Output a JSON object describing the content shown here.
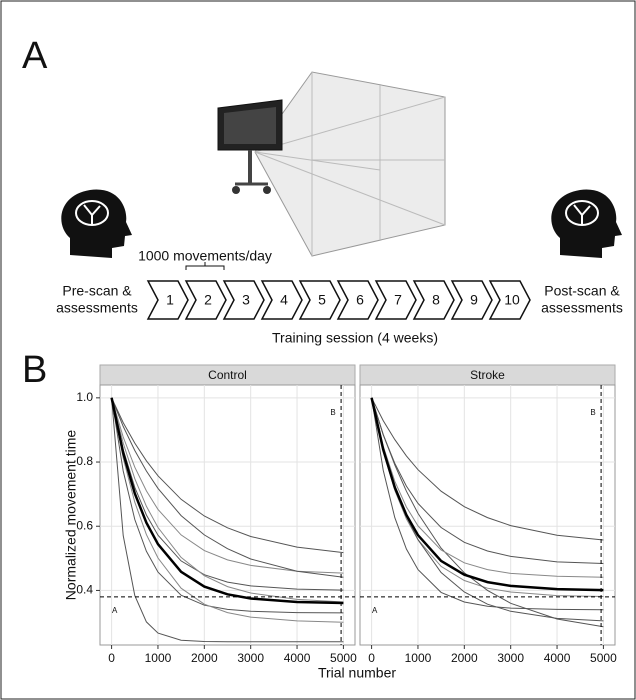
{
  "panel_a": {
    "label": "A",
    "top_note": "1000 movements/day",
    "pre": [
      "Pre-scan &",
      "assessments"
    ],
    "post": [
      "Post-scan &",
      "assessments"
    ],
    "steps": [
      "1",
      "2",
      "3",
      "4",
      "5",
      "6",
      "7",
      "8",
      "9",
      "10"
    ],
    "session": "Training session (4 weeks)"
  },
  "panel_b": {
    "label": "B",
    "ylabel": "Normalized movement time",
    "xlabel": "Trial number"
  },
  "chart_data": [
    {
      "type": "line",
      "title": "Control",
      "x": [
        0,
        250,
        500,
        750,
        1000,
        1500,
        2000,
        2500,
        3000,
        4000,
        5000
      ],
      "xlim": [
        -250,
        5250
      ],
      "ylim": [
        0.23,
        1.04
      ],
      "xticks": [
        0,
        1000,
        2000,
        3000,
        4000,
        5000
      ],
      "yticks": [
        0.4,
        0.6,
        0.8,
        {
          "value": 1,
          "label": "1.0"
        }
      ],
      "grid": true,
      "hline": {
        "value": 0.38,
        "label": "A"
      },
      "vline": {
        "value": 4950,
        "label": "B"
      },
      "series": [
        {
          "color": "#555555",
          "line_width": 1,
          "values": [
            1,
            0.571,
            0.384,
            0.302,
            0.267,
            0.245,
            0.241,
            0.24,
            0.24,
            0.24,
            0.24
          ]
        },
        {
          "color": "#555555",
          "line_width": 1,
          "values": [
            1,
            0.923,
            0.859,
            0.804,
            0.757,
            0.684,
            0.632,
            0.595,
            0.568,
            0.535,
            0.518
          ]
        },
        {
          "color": "#888888",
          "line_width": 1,
          "values": [
            1,
            0.878,
            0.784,
            0.71,
            0.652,
            0.573,
            0.524,
            0.495,
            0.478,
            0.46,
            0.454
          ]
        },
        {
          "color": "#555555",
          "line_width": 1,
          "values": [
            1,
            0.839,
            0.721,
            0.635,
            0.572,
            0.492,
            0.449,
            0.426,
            0.414,
            0.404,
            0.401
          ]
        },
        {
          "color": "#555555",
          "line_width": 1,
          "values": [
            1,
            0.772,
            0.621,
            0.522,
            0.457,
            0.385,
            0.354,
            0.341,
            0.335,
            0.331,
            0.33
          ]
        },
        {
          "color": "#888888",
          "line_width": 1,
          "values": [
            1,
            0.812,
            0.675,
            0.574,
            0.501,
            0.407,
            0.357,
            0.331,
            0.317,
            0.305,
            0.301
          ]
        },
        {
          "color": "#555555",
          "line_width": 1,
          "values": [
            1,
            0.911,
            0.836,
            0.772,
            0.718,
            0.633,
            0.573,
            0.53,
            0.498,
            0.46,
            0.441
          ]
        },
        {
          "color": "#888888",
          "line_width": 1,
          "values": [
            1,
            0.859,
            0.748,
            0.662,
            0.596,
            0.503,
            0.446,
            0.412,
            0.392,
            0.372,
            0.364
          ]
        },
        {
          "color": "#000000",
          "line_width": 2.5,
          "values": [
            1,
            0.828,
            0.702,
            0.611,
            0.544,
            0.458,
            0.412,
            0.388,
            0.375,
            0.364,
            0.361
          ]
        }
      ]
    },
    {
      "type": "line",
      "title": "Stroke",
      "x": [
        0,
        250,
        500,
        750,
        1000,
        1500,
        2000,
        2500,
        3000,
        4000,
        5000
      ],
      "xlim": [
        -250,
        5250
      ],
      "ylim": [
        0.23,
        1.04
      ],
      "xticks": [
        0,
        1000,
        2000,
        3000,
        4000,
        5000
      ],
      "yticks": [
        0.4,
        0.6,
        0.8,
        {
          "value": 1,
          "label": "1.0"
        }
      ],
      "grid": true,
      "hline": {
        "value": 0.38,
        "label": "A"
      },
      "vline": {
        "value": 4950,
        "label": "B"
      },
      "series": [
        {
          "color": "#555555",
          "line_width": 1,
          "values": [
            1,
            0.929,
            0.87,
            0.819,
            0.776,
            0.709,
            0.661,
            0.627,
            0.602,
            0.572,
            0.557
          ]
        },
        {
          "color": "#555555",
          "line_width": 1,
          "values": [
            1,
            0.885,
            0.796,
            0.725,
            0.671,
            0.596,
            0.55,
            0.523,
            0.506,
            0.489,
            0.484
          ]
        },
        {
          "color": "#888888",
          "line_width": 1,
          "values": [
            1,
            0.834,
            0.712,
            0.623,
            0.558,
            0.475,
            0.431,
            0.407,
            0.395,
            0.384,
            0.381
          ]
        },
        {
          "color": "#555555",
          "line_width": 1,
          "values": [
            1,
            0.845,
            0.725,
            0.63,
            0.558,
            0.456,
            0.395,
            0.357,
            0.335,
            0.313,
            0.305
          ]
        },
        {
          "color": "#555555",
          "line_width": 1,
          "values": [
            1,
            0.886,
            0.791,
            0.709,
            0.64,
            0.532,
            0.455,
            0.4,
            0.36,
            0.311,
            0.287
          ]
        },
        {
          "color": "#888888",
          "line_width": 1,
          "values": [
            1,
            0.85,
            0.74,
            0.66,
            0.601,
            0.526,
            0.486,
            0.465,
            0.453,
            0.444,
            0.441
          ]
        },
        {
          "color": "#555555",
          "line_width": 1,
          "values": [
            1,
            0.775,
            0.627,
            0.529,
            0.465,
            0.394,
            0.364,
            0.351,
            0.345,
            0.341,
            0.34
          ]
        },
        {
          "color": "#000000",
          "line_width": 2.5,
          "values": [
            1,
            0.839,
            0.721,
            0.635,
            0.572,
            0.492,
            0.449,
            0.426,
            0.414,
            0.404,
            0.401
          ]
        }
      ]
    }
  ]
}
